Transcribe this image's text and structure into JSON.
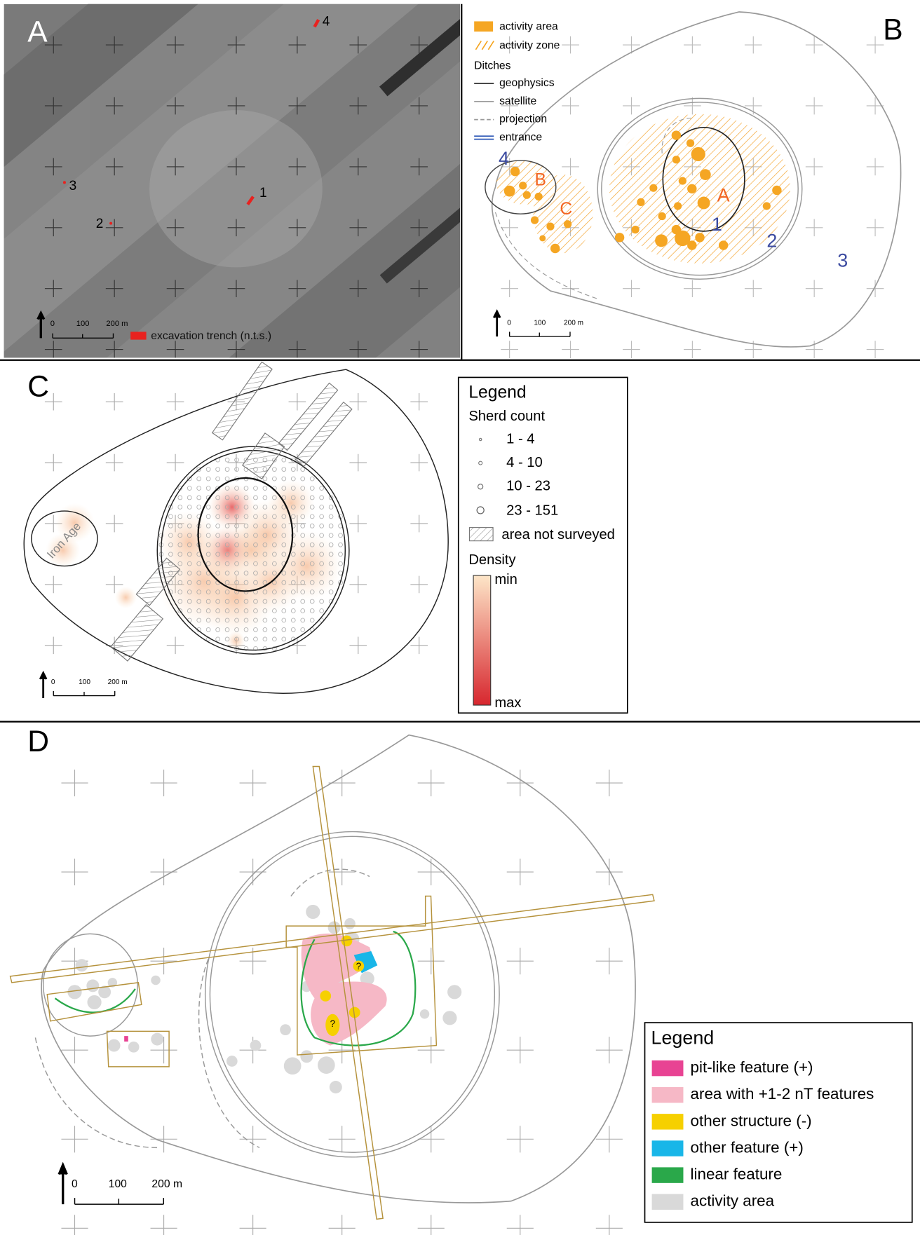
{
  "panel_a": {
    "label": "A",
    "trench_labels": [
      "1",
      "2",
      "3",
      "4"
    ],
    "scale_bar": [
      "0",
      "100",
      "200 m"
    ],
    "legend": "excavation trench (n.t.s.)"
  },
  "panel_b": {
    "label": "B",
    "legend": {
      "items": [
        "activity area",
        "activity zone"
      ],
      "ditches_title": "Ditches",
      "ditches": [
        "geophysics",
        "satellite",
        "projection",
        "entrance"
      ]
    },
    "ditch_labels": [
      "1",
      "2",
      "3",
      "4"
    ],
    "area_labels": [
      "A",
      "B",
      "C"
    ],
    "scale_bar": [
      "0",
      "100",
      "200 m"
    ]
  },
  "panel_c": {
    "label": "C",
    "map_label": "Iron Age",
    "legend": {
      "title": "Legend",
      "sherd_title": "Sherd count",
      "sherd_classes": [
        "1 - 4",
        "4 - 10",
        "10 - 23",
        "23 - 151"
      ],
      "not_surveyed": "area not surveyed",
      "density_title": "Density",
      "min": "min",
      "max": "max"
    },
    "scale_bar": [
      "0",
      "100",
      "200 m"
    ]
  },
  "panel_d": {
    "label": "D",
    "legend": {
      "title": "Legend",
      "items": [
        "pit-like feature (+)",
        "area with +1-2 nT features",
        "other structure (-)",
        "other feature (+)",
        "linear feature",
        "activity area"
      ]
    },
    "question_marks": [
      "?",
      "?"
    ],
    "scale_bar": [
      "0",
      "100",
      "200 m"
    ]
  }
}
